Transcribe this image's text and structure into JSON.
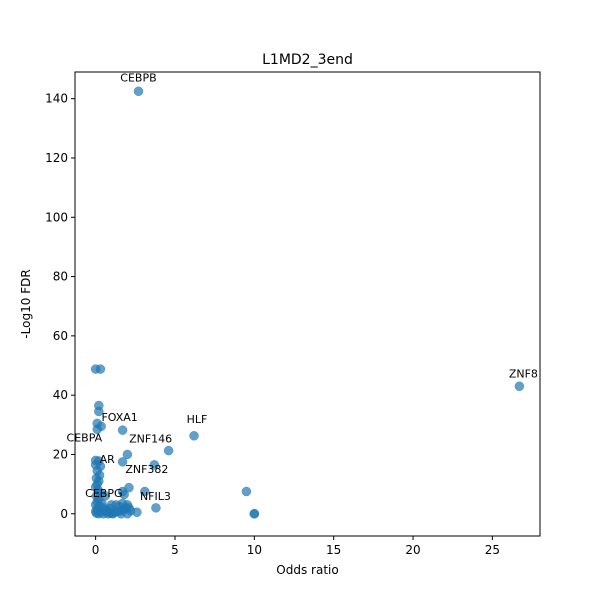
{
  "chart_data": {
    "type": "scatter",
    "title": "L1MD2_3end",
    "xlabel": "Odds ratio",
    "ylabel": "-Log10 FDR",
    "xlim": [
      -1.3,
      28
    ],
    "ylim": [
      -7.5,
      149
    ],
    "xticks": [
      0,
      5,
      10,
      15,
      20,
      25
    ],
    "yticks": [
      0,
      20,
      40,
      60,
      80,
      100,
      120,
      140
    ],
    "grid": false,
    "point_color": "#1f77b4",
    "points": [
      {
        "x": 2.7,
        "y": 142.5,
        "label": "CEBPB"
      },
      {
        "x": 26.7,
        "y": 43.0,
        "label": "ZNF8"
      },
      {
        "x": 6.2,
        "y": 26.3,
        "label": "HLF"
      },
      {
        "x": 1.7,
        "y": 28.2,
        "label": "FOXA1"
      },
      {
        "x": 4.6,
        "y": 21.3,
        "label": "ZNF146"
      },
      {
        "x": 2.0,
        "y": 20.0,
        "label": "CEBPA"
      },
      {
        "x": 1.7,
        "y": 17.5,
        "label": "AR"
      },
      {
        "x": 3.7,
        "y": 16.5,
        "label": "ZNF382"
      },
      {
        "x": 3.8,
        "y": 2.0,
        "label": "NFIL3"
      },
      {
        "x": 0.6,
        "y": 6.0,
        "label": "CEBPG"
      },
      {
        "x": 0.0,
        "y": 48.8
      },
      {
        "x": 0.3,
        "y": 48.8
      },
      {
        "x": 0.2,
        "y": 36.5
      },
      {
        "x": 0.2,
        "y": 34.5
      },
      {
        "x": 0.1,
        "y": 30.5
      },
      {
        "x": 0.35,
        "y": 29.5
      },
      {
        "x": 0.1,
        "y": 28.5
      },
      {
        "x": 0.0,
        "y": 18.0
      },
      {
        "x": 0.2,
        "y": 17.8
      },
      {
        "x": 0.0,
        "y": 16.5
      },
      {
        "x": 0.3,
        "y": 16.0
      },
      {
        "x": 0.1,
        "y": 14.5
      },
      {
        "x": 0.25,
        "y": 13.0
      },
      {
        "x": 0.05,
        "y": 12.0
      },
      {
        "x": 0.2,
        "y": 11.0
      },
      {
        "x": 0.1,
        "y": 10.0
      },
      {
        "x": 0.0,
        "y": 9.0
      },
      {
        "x": 0.15,
        "y": 8.0
      },
      {
        "x": 0.3,
        "y": 7.0
      },
      {
        "x": 0.05,
        "y": 6.0
      },
      {
        "x": 0.2,
        "y": 5.0
      },
      {
        "x": 0.1,
        "y": 4.0
      },
      {
        "x": 0.4,
        "y": 3.5
      },
      {
        "x": 0.0,
        "y": 3.0
      },
      {
        "x": 0.25,
        "y": 2.5
      },
      {
        "x": 0.5,
        "y": 2.0
      },
      {
        "x": 0.1,
        "y": 1.5
      },
      {
        "x": 0.7,
        "y": 1.2
      },
      {
        "x": 0.0,
        "y": 0.8
      },
      {
        "x": 0.3,
        "y": 0.6
      },
      {
        "x": 0.9,
        "y": 0.4
      },
      {
        "x": 0.05,
        "y": 0.2
      },
      {
        "x": 0.2,
        "y": 0.0
      },
      {
        "x": 0.5,
        "y": 0.0
      },
      {
        "x": 0.8,
        "y": 0.0
      },
      {
        "x": 1.0,
        "y": 0.2
      },
      {
        "x": 1.2,
        "y": 0.5
      },
      {
        "x": 1.4,
        "y": 0.8
      },
      {
        "x": 1.6,
        "y": 1.0
      },
      {
        "x": 1.8,
        "y": 1.5
      },
      {
        "x": 1.9,
        "y": 2.0
      },
      {
        "x": 1.5,
        "y": 2.5
      },
      {
        "x": 1.3,
        "y": 3.0
      },
      {
        "x": 1.7,
        "y": 3.5
      },
      {
        "x": 2.0,
        "y": 3.0
      },
      {
        "x": 2.1,
        "y": 2.0
      },
      {
        "x": 2.2,
        "y": 1.0
      },
      {
        "x": 2.0,
        "y": 0.0
      },
      {
        "x": 1.6,
        "y": 0.0
      },
      {
        "x": 1.1,
        "y": 0.0
      },
      {
        "x": 1.8,
        "y": 6.5
      },
      {
        "x": 1.7,
        "y": 7.5
      },
      {
        "x": 2.1,
        "y": 8.8
      },
      {
        "x": 3.1,
        "y": 7.5
      },
      {
        "x": 2.6,
        "y": 0.5
      },
      {
        "x": 0.6,
        "y": 0.8
      },
      {
        "x": 0.9,
        "y": 1.8
      },
      {
        "x": 1.0,
        "y": 3.0
      },
      {
        "x": 9.5,
        "y": 7.5
      },
      {
        "x": 10.0,
        "y": 0.0
      },
      {
        "x": 10.0,
        "y": 0.0
      }
    ]
  }
}
